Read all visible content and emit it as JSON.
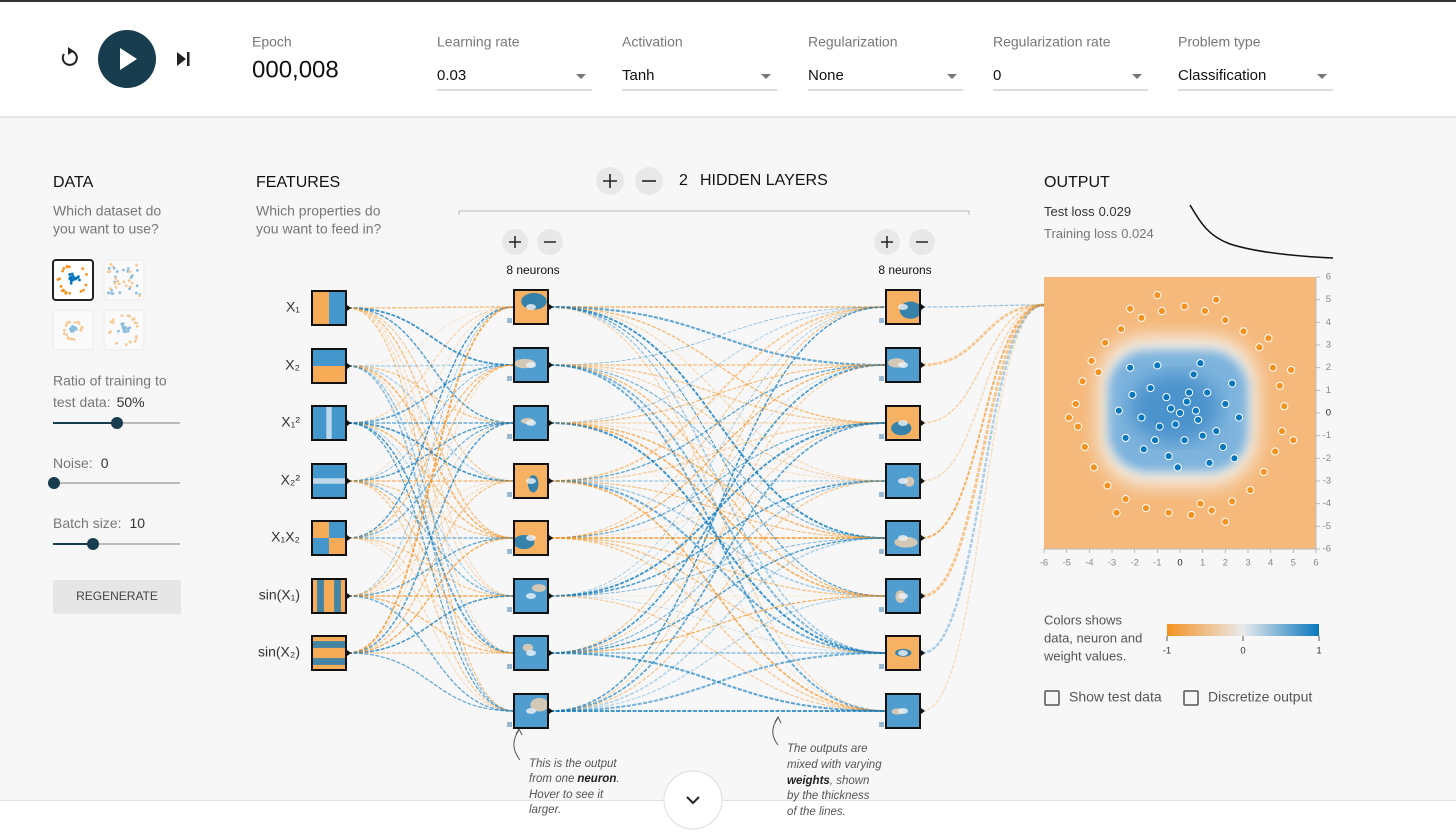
{
  "header": {
    "epoch_label": "Epoch",
    "epoch": "000,008",
    "dropdowns": [
      {
        "label": "Learning rate",
        "value": "0.03"
      },
      {
        "label": "Activation",
        "value": "Tanh"
      },
      {
        "label": "Regularization",
        "value": "None"
      },
      {
        "label": "Regularization rate",
        "value": "0"
      },
      {
        "label": "Problem type",
        "value": "Classification"
      }
    ]
  },
  "data": {
    "title": "DATA",
    "subtitle": [
      "Which dataset do",
      "you want to use?"
    ],
    "ratio_label": [
      "Ratio of training to",
      "test data:"
    ],
    "ratio_value": "50%",
    "noise_label": "Noise:",
    "noise_value": "0",
    "batch_label": "Batch size:",
    "batch_value": "10",
    "button": "REGENERATE"
  },
  "features": {
    "title": "FEATURES",
    "subtitle": [
      "Which properties do",
      "you want to feed in?"
    ],
    "inputs": [
      "X₁",
      "X₂",
      "X₁²",
      "X₂²",
      "X₁X₂",
      "sin(X₁)",
      "sin(X₂)"
    ]
  },
  "network": {
    "layer_count": "2",
    "layers_label": "HIDDEN LAYERS",
    "layers": [
      {
        "neurons_label": "8 neurons"
      },
      {
        "neurons_label": "8 neurons"
      }
    ]
  },
  "annotations": {
    "neuron": {
      "l1": "This is the output",
      "l2": "from one",
      "l2_bold": "neuron",
      "l2_end": ".",
      "l3": "Hover to see it",
      "l4": "larger."
    },
    "weights": {
      "l1": "The outputs are",
      "l2": "mixed with varying",
      "l3_bold": "weights",
      "l3": ", shown",
      "l4": "by the thickness",
      "l5": "of the lines."
    }
  },
  "output": {
    "title": "OUTPUT",
    "test_loss_label": "Test loss",
    "test_loss": 0.029,
    "training_loss_label": "Training loss",
    "training_loss": 0.024,
    "xlim": [
      -6,
      6
    ],
    "ylim": [
      -6,
      6
    ],
    "xticks": [
      -6,
      -5,
      -4,
      -3,
      -2,
      -1,
      0,
      1,
      2,
      3,
      4,
      5,
      6
    ],
    "yticks": [
      6,
      5,
      4,
      3,
      2,
      1,
      0,
      -1,
      -2,
      -3,
      -4,
      -5,
      -6
    ],
    "points": [
      {
        "color": "#f59322",
        "xy": [
          [
            4.6,
            0.3
          ],
          [
            4.4,
            1.2
          ],
          [
            4.1,
            2.0
          ],
          [
            3.5,
            2.9
          ],
          [
            2.8,
            3.6
          ],
          [
            2.0,
            4.1
          ],
          [
            1.1,
            4.5
          ],
          [
            0.2,
            4.7
          ],
          [
            -0.8,
            4.5
          ],
          [
            -1.7,
            4.2
          ],
          [
            -2.6,
            3.7
          ],
          [
            -3.3,
            3.1
          ],
          [
            -3.9,
            2.3
          ],
          [
            -4.3,
            1.4
          ],
          [
            -4.6,
            0.4
          ],
          [
            -4.5,
            -0.6
          ],
          [
            -4.2,
            -1.5
          ],
          [
            -3.8,
            -2.4
          ],
          [
            -3.2,
            -3.2
          ],
          [
            -2.4,
            -3.8
          ],
          [
            -1.5,
            -4.2
          ],
          [
            -0.5,
            -4.4
          ],
          [
            0.5,
            -4.5
          ],
          [
            1.4,
            -4.3
          ],
          [
            2.3,
            -3.9
          ],
          [
            3.1,
            -3.4
          ],
          [
            3.7,
            -2.6
          ],
          [
            4.2,
            -1.7
          ],
          [
            4.5,
            -0.8
          ],
          [
            5.0,
            -1.2
          ],
          [
            4.9,
            1.9
          ],
          [
            1.6,
            5.0
          ],
          [
            -2.2,
            4.6
          ],
          [
            -4.9,
            -0.2
          ],
          [
            -2.8,
            -4.4
          ],
          [
            2.0,
            -4.8
          ],
          [
            0.9,
            -4.0
          ],
          [
            -3.6,
            1.8
          ],
          [
            3.9,
            3.3
          ],
          [
            -1.0,
            5.2
          ]
        ]
      },
      {
        "color": "#0877bd",
        "xy": [
          [
            0,
            0
          ],
          [
            0.3,
            0.5
          ],
          [
            -0.4,
            0.2
          ],
          [
            0.8,
            -0.3
          ],
          [
            -0.9,
            -0.6
          ],
          [
            1.2,
            0.9
          ],
          [
            -1.3,
            1.1
          ],
          [
            0.2,
            -1.2
          ],
          [
            1.6,
            -0.8
          ],
          [
            -1.7,
            -0.2
          ],
          [
            2.0,
            0.4
          ],
          [
            -2.1,
            0.8
          ],
          [
            0.6,
            1.7
          ],
          [
            -0.5,
            -1.9
          ],
          [
            1.9,
            -1.5
          ],
          [
            -1.6,
            -1.6
          ],
          [
            2.3,
            1.3
          ],
          [
            -2.4,
            -1.1
          ],
          [
            0.9,
            2.2
          ],
          [
            -1.0,
            2.1
          ],
          [
            1.3,
            -2.2
          ],
          [
            -0.1,
            -2.4
          ],
          [
            2.6,
            -0.2
          ],
          [
            -2.7,
            0.1
          ],
          [
            0.4,
            0.9
          ],
          [
            -0.2,
            -0.5
          ],
          [
            0.7,
            0.1
          ],
          [
            -0.6,
            0.7
          ],
          [
            1.0,
            -1.0
          ],
          [
            -1.1,
            -1.2
          ],
          [
            2.4,
            -2.0
          ],
          [
            -2.2,
            2.0
          ]
        ]
      }
    ],
    "legend_text": [
      "Colors shows",
      "data, neuron and",
      "weight values."
    ],
    "color_scale": {
      "ticks": [
        -1,
        0,
        1
      ],
      "low": "#f59322",
      "high": "#0877bd"
    },
    "checkboxes": [
      "Show test data",
      "Discretize output"
    ]
  }
}
